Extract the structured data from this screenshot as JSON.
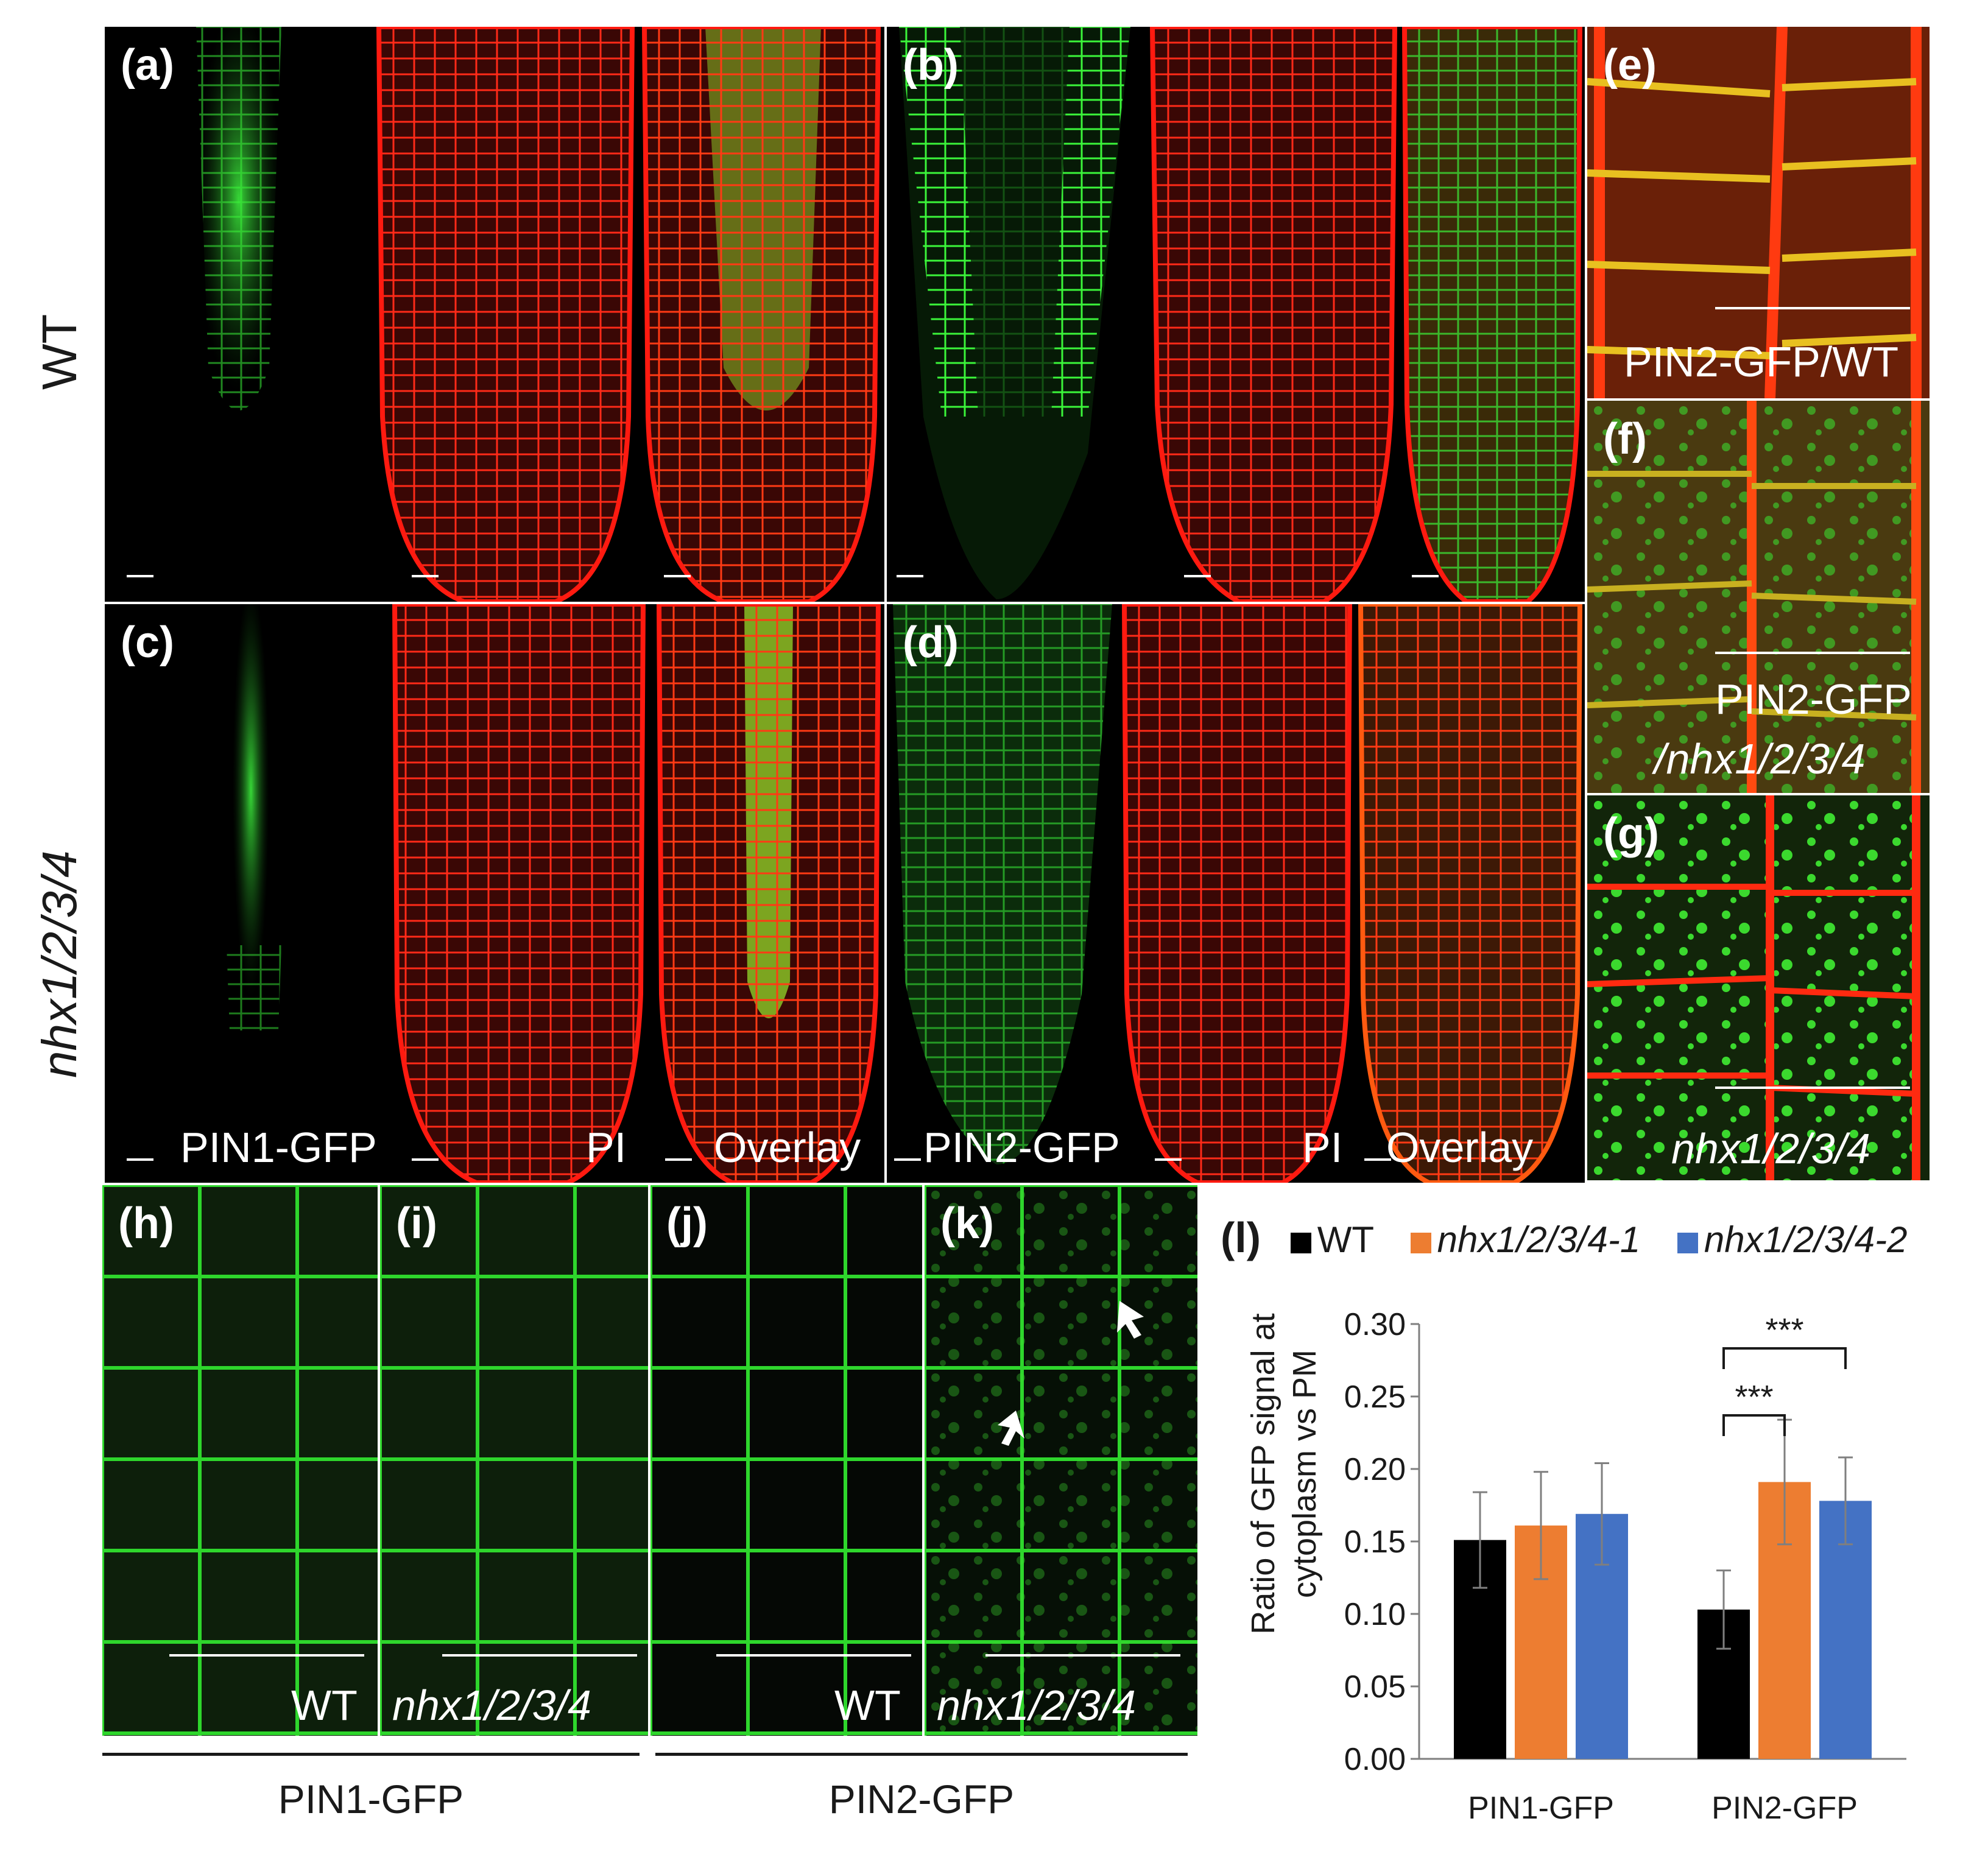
{
  "row_labels": {
    "top": "WT",
    "bottom": "nhx1/2/3/4"
  },
  "panels": {
    "a": "(a)",
    "b": "(b)",
    "c": "(c)",
    "d": "(d)",
    "e": "(e)",
    "f": "(f)",
    "g": "(g)",
    "h": "(h)",
    "i": "(i)",
    "j": "(j)",
    "k": "(k)"
  },
  "channel_labels": {
    "pin1": "PIN1-GFP",
    "pi1": "PI",
    "overlay1": "Overlay",
    "pin2": "PIN2-GFP",
    "pi2": "PI",
    "overlay2": "Overlay"
  },
  "side_labels": {
    "e": "PIN2-GFP/WT",
    "f_line1": "PIN2-GFP",
    "f_line2": "/nhx1/2/3/4",
    "g": "nhx1/2/3/4"
  },
  "bottom_labels": {
    "h": "WT",
    "i": "nhx1/2/3/4",
    "j": "WT",
    "k": "nhx1/2/3/4"
  },
  "group_labels": {
    "left": "PIN1-GFP",
    "right": "PIN2-GFP"
  },
  "chart_data": {
    "type": "bar",
    "panel_label": "(l)",
    "ylabel_line1": "Ratio of GFP signal at",
    "ylabel_line2": "cytoplasm vs PM",
    "categories": [
      "PIN1-GFP",
      "PIN2-GFP"
    ],
    "ylim": [
      0,
      0.3
    ],
    "yticks": [
      "0.00",
      "0.05",
      "0.10",
      "0.15",
      "0.20",
      "0.25",
      "0.30"
    ],
    "series": [
      {
        "name": "WT",
        "color": "#000000",
        "values": [
          0.151,
          0.103
        ],
        "errors": [
          0.033,
          0.027
        ]
      },
      {
        "name": "nhx1/2/3/4-1",
        "color": "#ED7D31",
        "values": [
          0.161,
          0.191
        ],
        "errors": [
          0.037,
          0.043
        ]
      },
      {
        "name": "nhx1/2/3/4-2",
        "color": "#4472C4",
        "values": [
          0.169,
          0.178
        ],
        "errors": [
          0.035,
          0.03
        ]
      }
    ],
    "significance": [
      {
        "category": "PIN2-GFP",
        "from": "WT",
        "to": "nhx1/2/3/4-1",
        "label": "***"
      },
      {
        "category": "PIN2-GFP",
        "from": "WT",
        "to": "nhx1/2/3/4-2",
        "label": "***"
      }
    ],
    "grid": false,
    "legend_position": "top"
  },
  "colors": {
    "gfp": "#2fd42a",
    "pi": "#e8140f",
    "overlay_mix": "#b9c228"
  }
}
